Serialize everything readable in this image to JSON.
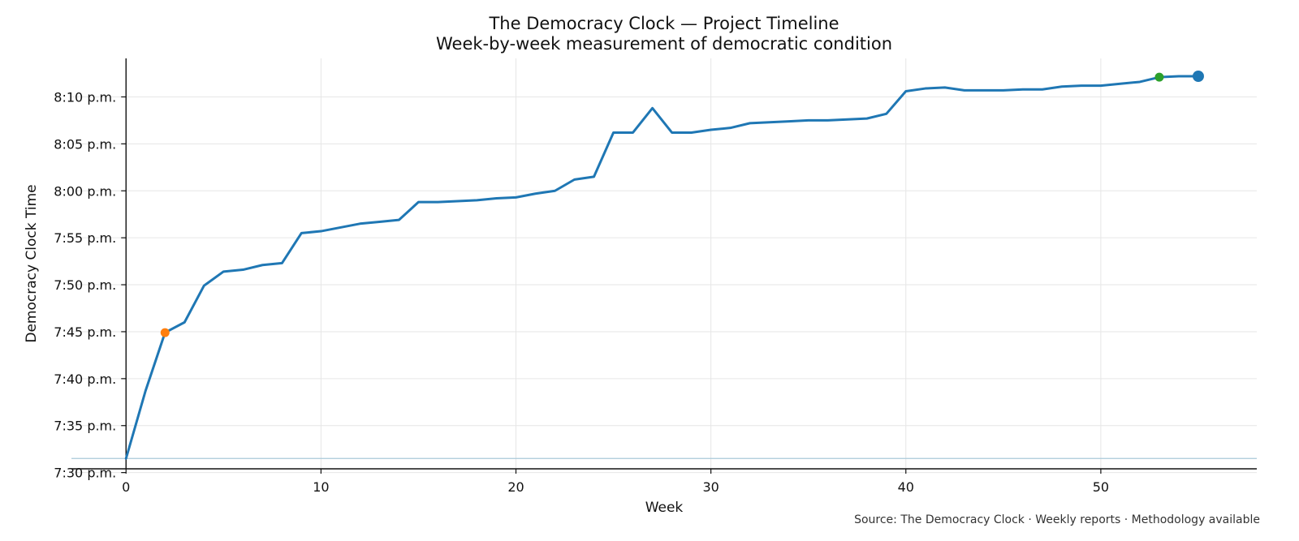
{
  "chart_data": {
    "type": "line",
    "title": "The Democracy Clock — Project Timeline",
    "subtitle": "Week-by-week measurement of democratic condition",
    "xlabel": "Week",
    "ylabel": "Democracy Clock Time",
    "source": "Source: The Democracy Clock · Weekly reports · Methodology available",
    "xlim": [
      -2.8,
      58
    ],
    "ylim": [
      450.4,
      494.1
    ],
    "x_ticks": [
      0,
      10,
      20,
      30,
      40,
      50
    ],
    "y_ticks": [
      {
        "value": 450,
        "label": "7:30 p.m."
      },
      {
        "value": 455,
        "label": "7:35 p.m."
      },
      {
        "value": 460,
        "label": "7:40 p.m."
      },
      {
        "value": 465,
        "label": "7:45 p.m."
      },
      {
        "value": 470,
        "label": "7:50 p.m."
      },
      {
        "value": 475,
        "label": "7:55 p.m."
      },
      {
        "value": 480,
        "label": "8:00 p.m."
      },
      {
        "value": 485,
        "label": "8:05 p.m."
      },
      {
        "value": 490,
        "label": "8:10 p.m."
      }
    ],
    "grid": true,
    "reference_line": {
      "y": 451.5
    },
    "series": [
      {
        "color": "#1f77b4",
        "x": [
          0,
          1,
          2,
          3,
          4,
          5,
          6,
          7,
          8,
          9,
          10,
          11,
          12,
          13,
          14,
          15,
          16,
          17,
          18,
          19,
          20,
          21,
          22,
          23,
          24,
          25,
          26,
          27,
          28,
          29,
          30,
          31,
          32,
          33,
          34,
          35,
          36,
          37,
          38,
          39,
          40,
          41,
          42,
          43,
          44,
          45,
          46,
          47,
          48,
          49,
          50,
          51,
          52,
          53,
          54,
          55
        ],
        "y": [
          451.5,
          458.7,
          464.9,
          466,
          469.9,
          471.4,
          471.6,
          472.1,
          472.3,
          475.5,
          475.7,
          476.1,
          476.5,
          476.7,
          476.9,
          478.8,
          478.8,
          478.9,
          479,
          479.2,
          479.3,
          479.7,
          480,
          481.2,
          481.5,
          486.2,
          486.2,
          488.8,
          486.2,
          486.2,
          486.5,
          486.7,
          487.2,
          487.3,
          487.4,
          487.5,
          487.5,
          487.6,
          487.7,
          488.2,
          490.6,
          490.9,
          491,
          490.7,
          490.7,
          490.7,
          490.8,
          490.8,
          491.1,
          491.2,
          491.2,
          491.4,
          491.6,
          492.1,
          492.2,
          492.2
        ]
      }
    ],
    "markers": [
      {
        "x": 2,
        "y": 464.9,
        "color": "#ff7f0e"
      },
      {
        "x": 53,
        "y": 492.1,
        "color": "#2ca02c"
      },
      {
        "x": 55,
        "y": 492.2,
        "color": "#1f77b4"
      }
    ]
  }
}
